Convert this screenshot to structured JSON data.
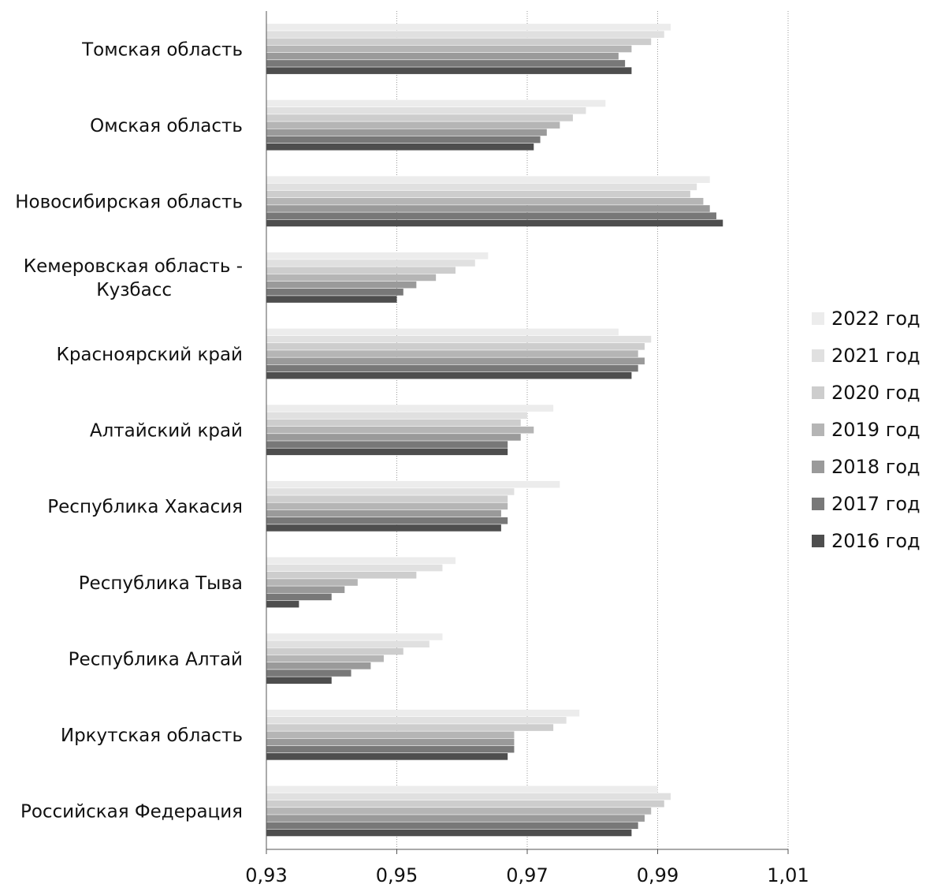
{
  "chart_data": {
    "type": "bar",
    "orientation": "horizontal",
    "categories": [
      [
        "Томская область"
      ],
      [
        "Омская область"
      ],
      [
        "Новосибирская область"
      ],
      [
        "Кемеровская область -",
        "Кузбасс"
      ],
      [
        "Красноярский край"
      ],
      [
        "Алтайский край"
      ],
      [
        "Республика Хакасия"
      ],
      [
        "Республика Тыва"
      ],
      [
        "Республика Алтай"
      ],
      [
        "Иркутская область"
      ],
      [
        "Российская Федерация"
      ]
    ],
    "series": [
      {
        "name": "2022 год",
        "color": "#ececec",
        "values": [
          0.992,
          0.982,
          0.998,
          0.964,
          0.984,
          0.974,
          0.975,
          0.959,
          0.957,
          0.978,
          0.99
        ]
      },
      {
        "name": "2021 год",
        "color": "#e0e0e0",
        "values": [
          0.991,
          0.979,
          0.996,
          0.962,
          0.989,
          0.97,
          0.968,
          0.957,
          0.955,
          0.976,
          0.992
        ]
      },
      {
        "name": "2020 год",
        "color": "#cdcdcd",
        "values": [
          0.989,
          0.977,
          0.995,
          0.959,
          0.988,
          0.969,
          0.967,
          0.953,
          0.951,
          0.974,
          0.991
        ]
      },
      {
        "name": "2019 год",
        "color": "#b5b5b5",
        "values": [
          0.986,
          0.975,
          0.997,
          0.956,
          0.987,
          0.971,
          0.967,
          0.944,
          0.948,
          0.968,
          0.989
        ]
      },
      {
        "name": "2018 год",
        "color": "#9a9a9a",
        "values": [
          0.984,
          0.973,
          0.998,
          0.953,
          0.988,
          0.969,
          0.966,
          0.942,
          0.946,
          0.968,
          0.988
        ]
      },
      {
        "name": "2017 год",
        "color": "#787878",
        "values": [
          0.985,
          0.972,
          0.999,
          0.951,
          0.987,
          0.967,
          0.967,
          0.94,
          0.943,
          0.968,
          0.987
        ]
      },
      {
        "name": "2016 год",
        "color": "#4e4e4e",
        "values": [
          0.986,
          0.971,
          1.0,
          0.95,
          0.986,
          0.967,
          0.966,
          0.935,
          0.94,
          0.967,
          0.986
        ]
      }
    ],
    "xlim": [
      0.93,
      1.01
    ],
    "xticks": [
      "0,93",
      "0,95",
      "0,97",
      "0,99",
      "1,01"
    ],
    "grid": true,
    "legend_position": "right",
    "title": "",
    "xlabel": "",
    "ylabel": ""
  }
}
